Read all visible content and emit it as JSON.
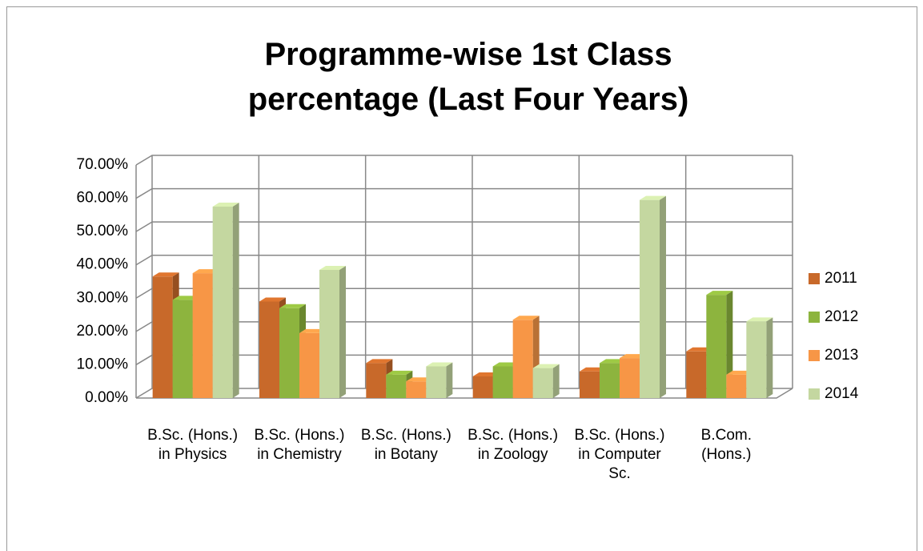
{
  "chart_data": {
    "type": "bar3d",
    "title": "Programme-wise 1st Class percentage (Last Four Years)",
    "categories": [
      "B.Sc. (Hons.) in Physics",
      "B.Sc. (Hons.) in Chemistry",
      "B.Sc. (Hons.) in Botany",
      "B.Sc. (Hons.) in Zoology",
      "B.Sc. (Hons.) in Computer Sc.",
      "B.Com. (Hons.)"
    ],
    "series": [
      {
        "name": "2011",
        "color": "#c8692a",
        "values": [
          36.5,
          29,
          10.5,
          6.5,
          8,
          14
        ]
      },
      {
        "name": "2012",
        "color": "#8db43e",
        "values": [
          29.5,
          27,
          7,
          9.5,
          10.5,
          31
        ]
      },
      {
        "name": "2013",
        "color": "#f79646",
        "values": [
          37.5,
          19.5,
          5,
          23.5,
          12,
          7
        ]
      },
      {
        "name": "2014",
        "color": "#c4d7a0",
        "values": [
          57.5,
          38.5,
          9.5,
          9,
          59.5,
          23
        ]
      }
    ],
    "ylim": [
      0,
      70
    ],
    "yticks": [
      {
        "value": 0,
        "label": "0.00%"
      },
      {
        "value": 10,
        "label": "10.00%"
      },
      {
        "value": 20,
        "label": "20.00%"
      },
      {
        "value": 30,
        "label": "30.00%"
      },
      {
        "value": 40,
        "label": "40.00%"
      },
      {
        "value": 50,
        "label": "50.00%"
      },
      {
        "value": 60,
        "label": "60.00%"
      },
      {
        "value": 70,
        "label": "70.00%"
      }
    ],
    "grid": true,
    "legend": "right"
  }
}
